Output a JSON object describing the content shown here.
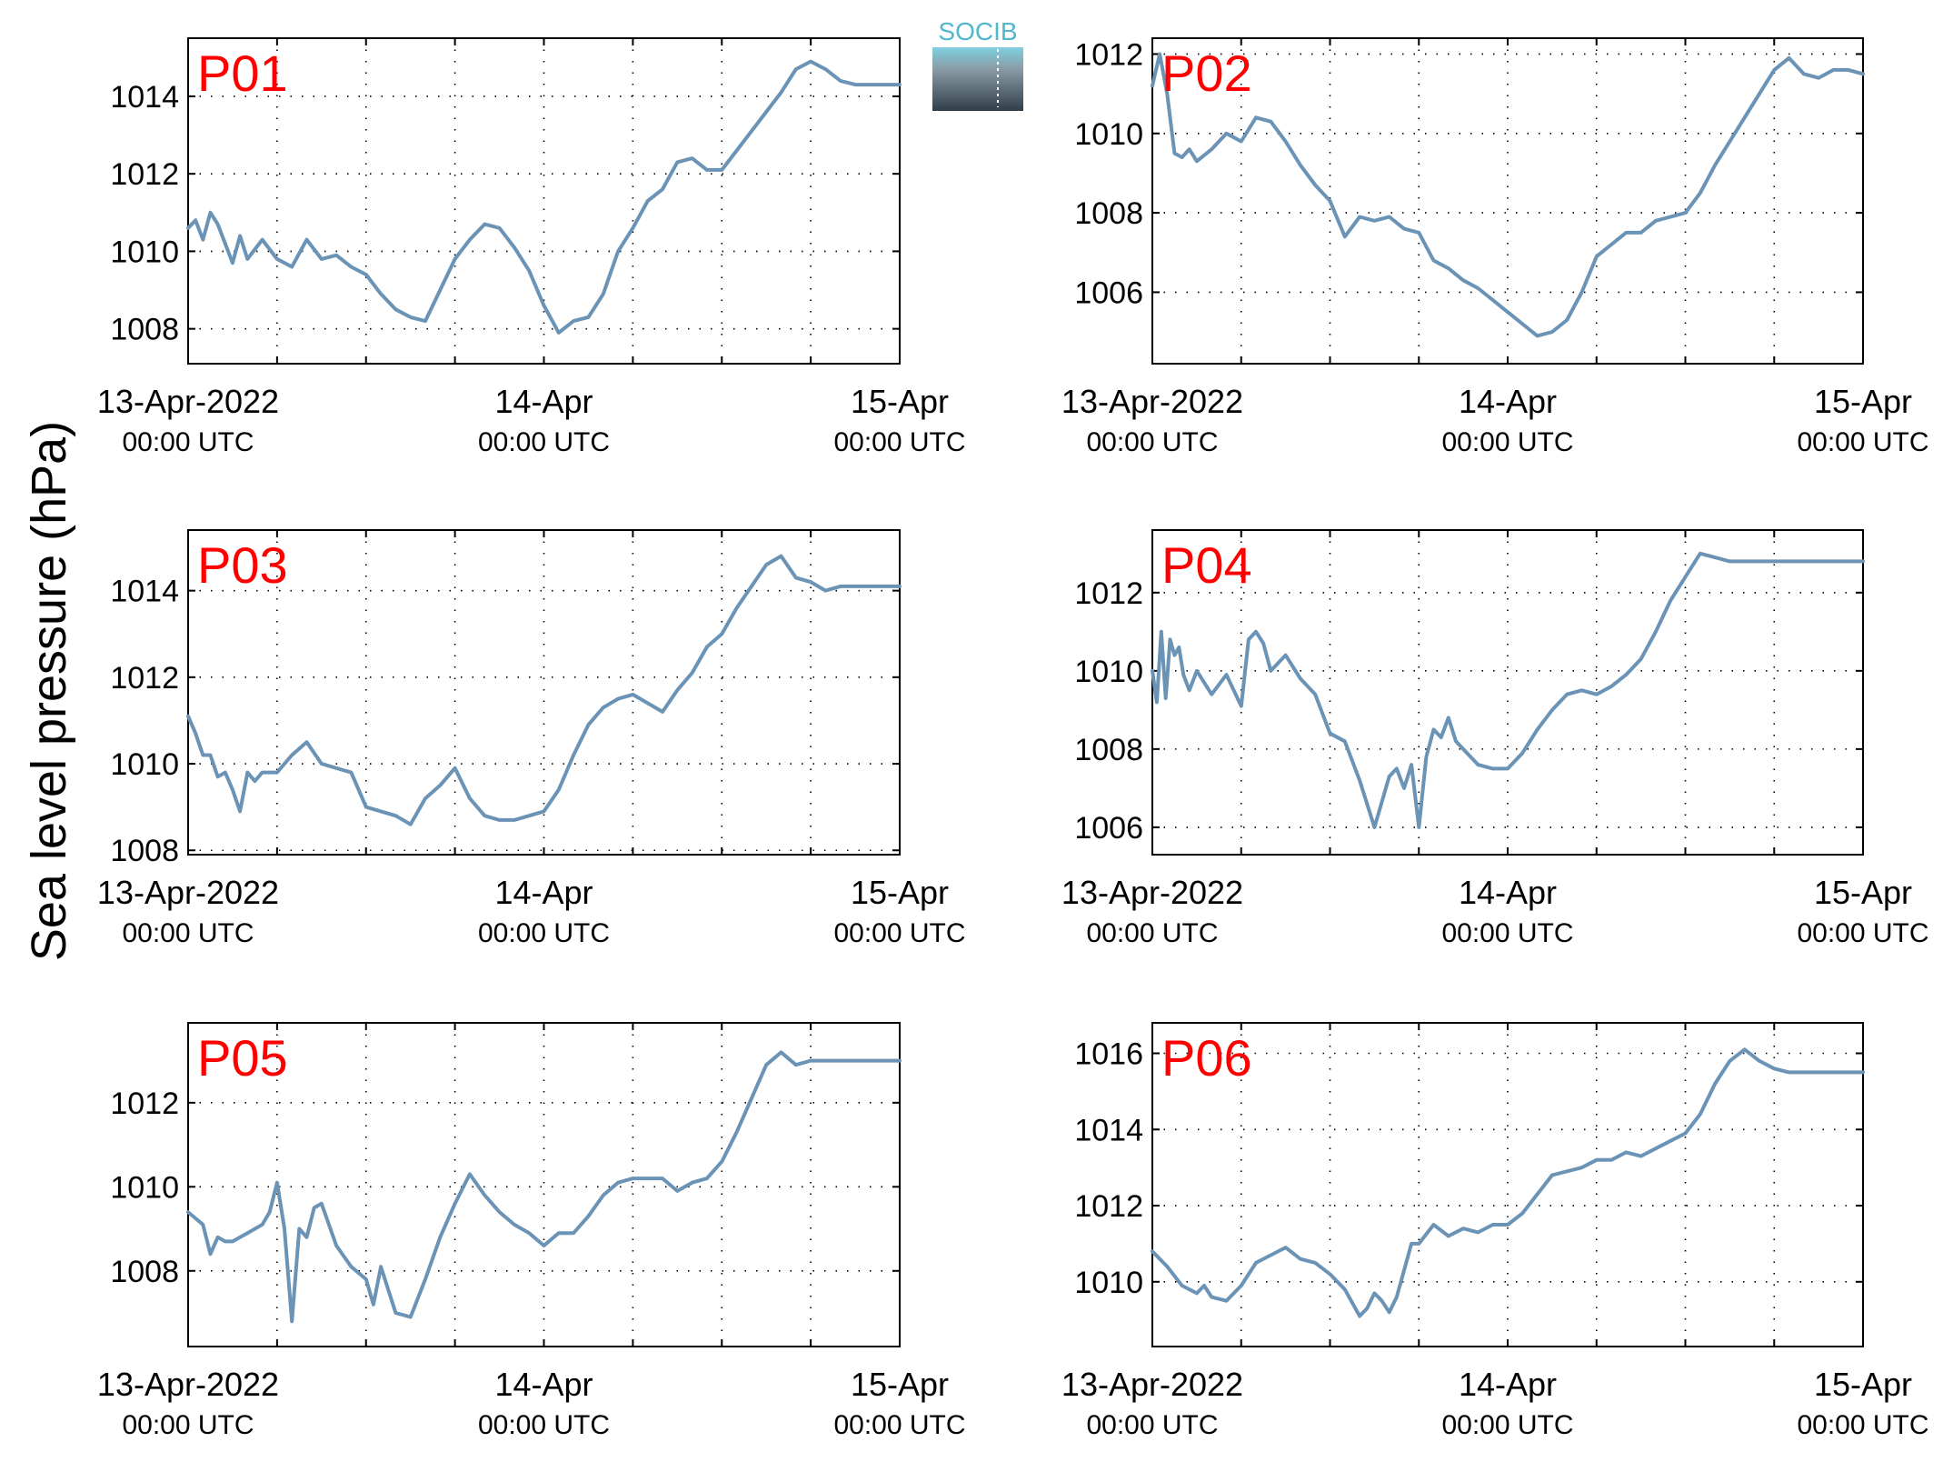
{
  "figure": {
    "ylabel": "Sea level pressure (hPa)",
    "logo_text": "SOCIB",
    "line_color": "#6A93B5",
    "panel_label_color": "#FF0000"
  },
  "chart_data": [
    {
      "type": "line",
      "title": "P01",
      "x_unit": "hours since 13-Apr-2022 00:00 UTC",
      "xlim": [
        0,
        48
      ],
      "x_ticks": [
        0,
        6,
        12,
        18,
        24,
        30,
        36,
        42,
        48
      ],
      "x_ticklabels": [
        {
          "x": 0,
          "line1": "13-Apr-2022",
          "line2": "00:00 UTC"
        },
        {
          "x": 24,
          "line1": "14-Apr",
          "line2": "00:00 UTC"
        },
        {
          "x": 48,
          "line1": "15-Apr",
          "line2": "00:00 UTC"
        }
      ],
      "ylim": [
        1007.1,
        1015.5
      ],
      "y_ticks": [
        1008,
        1010,
        1012,
        1014
      ],
      "grid": true,
      "x": [
        0,
        0.5,
        1,
        1.5,
        2,
        2.5,
        3,
        3.5,
        4,
        5,
        6,
        7,
        8,
        9,
        10,
        11,
        12,
        13,
        14,
        15,
        16,
        17,
        18,
        19,
        20,
        21,
        22,
        23,
        24,
        25,
        26,
        27,
        28,
        29,
        30,
        31,
        32,
        33,
        34,
        35,
        36,
        37,
        38,
        39,
        40,
        41,
        42,
        43,
        44,
        45,
        46,
        47,
        48
      ],
      "y": [
        1010.6,
        1010.8,
        1010.3,
        1011.0,
        1010.7,
        1010.2,
        1009.7,
        1010.4,
        1009.8,
        1010.3,
        1009.8,
        1009.6,
        1010.3,
        1009.8,
        1009.9,
        1009.6,
        1009.4,
        1008.9,
        1008.5,
        1008.3,
        1008.2,
        1009.0,
        1009.8,
        1010.3,
        1010.7,
        1010.6,
        1010.1,
        1009.5,
        1008.6,
        1007.9,
        1008.2,
        1008.3,
        1008.9,
        1010.0,
        1010.6,
        1011.3,
        1011.6,
        1012.3,
        1012.4,
        1012.1,
        1012.1,
        1012.6,
        1013.1,
        1013.6,
        1014.1,
        1014.7,
        1014.9,
        1014.7,
        1014.4,
        1014.3,
        1014.3,
        1014.3,
        1014.3
      ]
    },
    {
      "type": "line",
      "title": "P02",
      "x_unit": "hours since 13-Apr-2022 00:00 UTC",
      "xlim": [
        0,
        48
      ],
      "x_ticks": [
        0,
        6,
        12,
        18,
        24,
        30,
        36,
        42,
        48
      ],
      "x_ticklabels": [
        {
          "x": 0,
          "line1": "13-Apr-2022",
          "line2": "00:00 UTC"
        },
        {
          "x": 24,
          "line1": "14-Apr",
          "line2": "00:00 UTC"
        },
        {
          "x": 48,
          "line1": "15-Apr",
          "line2": "00:00 UTC"
        }
      ],
      "ylim": [
        1004.2,
        1012.4
      ],
      "y_ticks": [
        1006,
        1008,
        1010,
        1012
      ],
      "grid": true,
      "x": [
        0,
        0.5,
        1,
        1.5,
        2,
        2.5,
        3,
        4,
        5,
        6,
        7,
        8,
        9,
        10,
        11,
        12,
        13,
        14,
        15,
        16,
        17,
        18,
        19,
        20,
        21,
        22,
        23,
        24,
        25,
        26,
        27,
        28,
        29,
        30,
        31,
        32,
        33,
        34,
        35,
        36,
        37,
        38,
        39,
        40,
        41,
        42,
        43,
        44,
        45,
        46,
        47,
        48
      ],
      "y": [
        1011.2,
        1012.0,
        1011.0,
        1009.5,
        1009.4,
        1009.6,
        1009.3,
        1009.6,
        1010.0,
        1009.8,
        1010.4,
        1010.3,
        1009.8,
        1009.2,
        1008.7,
        1008.3,
        1007.4,
        1007.9,
        1007.8,
        1007.9,
        1007.6,
        1007.5,
        1006.8,
        1006.6,
        1006.3,
        1006.1,
        1005.8,
        1005.5,
        1005.2,
        1004.9,
        1005.0,
        1005.3,
        1006.0,
        1006.9,
        1007.2,
        1007.5,
        1007.5,
        1007.8,
        1007.9,
        1008.0,
        1008.5,
        1009.2,
        1009.8,
        1010.4,
        1011.0,
        1011.6,
        1011.9,
        1011.5,
        1011.4,
        1011.6,
        1011.6,
        1011.5
      ]
    },
    {
      "type": "line",
      "title": "P03",
      "x_unit": "hours since 13-Apr-2022 00:00 UTC",
      "xlim": [
        0,
        48
      ],
      "x_ticks": [
        0,
        6,
        12,
        18,
        24,
        30,
        36,
        42,
        48
      ],
      "x_ticklabels": [
        {
          "x": 0,
          "line1": "13-Apr-2022",
          "line2": "00:00 UTC"
        },
        {
          "x": 24,
          "line1": "14-Apr",
          "line2": "00:00 UTC"
        },
        {
          "x": 48,
          "line1": "15-Apr",
          "line2": "00:00 UTC"
        }
      ],
      "ylim": [
        1007.9,
        1015.4
      ],
      "y_ticks": [
        1008,
        1010,
        1012,
        1014
      ],
      "grid": true,
      "x": [
        0,
        0.5,
        1,
        1.5,
        2,
        2.5,
        3,
        3.5,
        4,
        4.5,
        5,
        6,
        7,
        8,
        9,
        10,
        11,
        12,
        13,
        14,
        15,
        16,
        17,
        18,
        19,
        20,
        21,
        22,
        23,
        24,
        25,
        26,
        27,
        28,
        29,
        30,
        31,
        32,
        33,
        34,
        35,
        36,
        37,
        38,
        39,
        40,
        41,
        42,
        43,
        44,
        45,
        46,
        47,
        48
      ],
      "y": [
        1011.1,
        1010.7,
        1010.2,
        1010.2,
        1009.7,
        1009.8,
        1009.4,
        1008.9,
        1009.8,
        1009.6,
        1009.8,
        1009.8,
        1010.2,
        1010.5,
        1010.0,
        1009.9,
        1009.8,
        1009.0,
        1008.9,
        1008.8,
        1008.6,
        1009.2,
        1009.5,
        1009.9,
        1009.2,
        1008.8,
        1008.7,
        1008.7,
        1008.8,
        1008.9,
        1009.4,
        1010.2,
        1010.9,
        1011.3,
        1011.5,
        1011.6,
        1011.4,
        1011.2,
        1011.7,
        1012.1,
        1012.7,
        1013.0,
        1013.6,
        1014.1,
        1014.6,
        1014.8,
        1014.3,
        1014.2,
        1014.0,
        1014.1,
        1014.1,
        1014.1,
        1014.1,
        1014.1
      ]
    },
    {
      "type": "line",
      "title": "P04",
      "x_unit": "hours since 13-Apr-2022 00:00 UTC",
      "xlim": [
        0,
        48
      ],
      "x_ticks": [
        0,
        6,
        12,
        18,
        24,
        30,
        36,
        42,
        48
      ],
      "x_ticklabels": [
        {
          "x": 0,
          "line1": "13-Apr-2022",
          "line2": "00:00 UTC"
        },
        {
          "x": 24,
          "line1": "14-Apr",
          "line2": "00:00 UTC"
        },
        {
          "x": 48,
          "line1": "15-Apr",
          "line2": "00:00 UTC"
        }
      ],
      "ylim": [
        1005.3,
        1013.6
      ],
      "y_ticks": [
        1006,
        1008,
        1010,
        1012
      ],
      "grid": true,
      "x": [
        0,
        0.3,
        0.6,
        0.9,
        1.2,
        1.5,
        1.8,
        2.1,
        2.5,
        3,
        4,
        5,
        6,
        6.5,
        7,
        7.5,
        8,
        9,
        10,
        11,
        12,
        13,
        14,
        15,
        16,
        16.5,
        17,
        17.5,
        18,
        18.5,
        19,
        19.5,
        20,
        20.5,
        21,
        22,
        23,
        24,
        25,
        26,
        27,
        28,
        29,
        30,
        31,
        32,
        33,
        34,
        35,
        36,
        37,
        38,
        39,
        40,
        41,
        42,
        43,
        44,
        45,
        46,
        47,
        48
      ],
      "y": [
        1010.0,
        1009.2,
        1011.0,
        1009.3,
        1010.8,
        1010.4,
        1010.6,
        1009.9,
        1009.5,
        1010.0,
        1009.4,
        1009.9,
        1009.1,
        1010.8,
        1011.0,
        1010.7,
        1010.0,
        1010.4,
        1009.8,
        1009.4,
        1008.4,
        1008.2,
        1007.2,
        1006.0,
        1007.3,
        1007.5,
        1007.0,
        1007.6,
        1006.0,
        1007.8,
        1008.5,
        1008.3,
        1008.8,
        1008.2,
        1008.0,
        1007.6,
        1007.5,
        1007.5,
        1007.9,
        1008.5,
        1009.0,
        1009.4,
        1009.5,
        1009.4,
        1009.6,
        1009.9,
        1010.3,
        1011.0,
        1011.8,
        1012.4,
        1013.0,
        1012.9,
        1012.8,
        1012.8,
        1012.8,
        1012.8,
        1012.8,
        1012.8,
        1012.8,
        1012.8,
        1012.8,
        1012.8
      ]
    },
    {
      "type": "line",
      "title": "P05",
      "x_unit": "hours since 13-Apr-2022 00:00 UTC",
      "xlim": [
        0,
        48
      ],
      "x_ticks": [
        0,
        6,
        12,
        18,
        24,
        30,
        36,
        42,
        48
      ],
      "x_ticklabels": [
        {
          "x": 0,
          "line1": "13-Apr-2022",
          "line2": "00:00 UTC"
        },
        {
          "x": 24,
          "line1": "14-Apr",
          "line2": "00:00 UTC"
        },
        {
          "x": 48,
          "line1": "15-Apr",
          "line2": "00:00 UTC"
        }
      ],
      "ylim": [
        1006.2,
        1013.9
      ],
      "y_ticks": [
        1008,
        1010,
        1012
      ],
      "grid": true,
      "x": [
        0,
        1,
        1.5,
        2,
        2.5,
        3,
        4,
        5,
        5.5,
        6,
        6.5,
        7,
        7.5,
        8,
        8.5,
        9,
        10,
        11,
        12,
        12.5,
        13,
        14,
        15,
        16,
        17,
        18,
        19,
        20,
        21,
        22,
        23,
        24,
        25,
        26,
        27,
        28,
        29,
        30,
        31,
        32,
        33,
        34,
        35,
        36,
        37,
        38,
        39,
        40,
        41,
        42,
        43,
        44,
        45,
        46,
        47,
        48
      ],
      "y": [
        1009.4,
        1009.1,
        1008.4,
        1008.8,
        1008.7,
        1008.7,
        1008.9,
        1009.1,
        1009.4,
        1010.1,
        1009.0,
        1006.8,
        1009.0,
        1008.8,
        1009.5,
        1009.6,
        1008.6,
        1008.1,
        1007.8,
        1007.2,
        1008.1,
        1007.0,
        1006.9,
        1007.8,
        1008.8,
        1009.6,
        1010.3,
        1009.8,
        1009.4,
        1009.1,
        1008.9,
        1008.6,
        1008.9,
        1008.9,
        1009.3,
        1009.8,
        1010.1,
        1010.2,
        1010.2,
        1010.2,
        1009.9,
        1010.1,
        1010.2,
        1010.6,
        1011.3,
        1012.1,
        1012.9,
        1013.2,
        1012.9,
        1013.0,
        1013.0,
        1013.0,
        1013.0,
        1013.0,
        1013.0,
        1013.0
      ]
    },
    {
      "type": "line",
      "title": "P06",
      "x_unit": "hours since 13-Apr-2022 00:00 UTC",
      "xlim": [
        0,
        48
      ],
      "x_ticks": [
        0,
        6,
        12,
        18,
        24,
        30,
        36,
        42,
        48
      ],
      "x_ticklabels": [
        {
          "x": 0,
          "line1": "13-Apr-2022",
          "line2": "00:00 UTC"
        },
        {
          "x": 24,
          "line1": "14-Apr",
          "line2": "00:00 UTC"
        },
        {
          "x": 48,
          "line1": "15-Apr",
          "line2": "00:00 UTC"
        }
      ],
      "ylim": [
        1008.3,
        1016.8
      ],
      "y_ticks": [
        1010,
        1012,
        1014,
        1016
      ],
      "grid": true,
      "x": [
        0,
        1,
        2,
        3,
        3.5,
        4,
        5,
        6,
        7,
        8,
        9,
        10,
        11,
        12,
        13,
        14,
        14.5,
        15,
        15.5,
        16,
        16.5,
        17,
        17.5,
        18,
        19,
        20,
        21,
        22,
        23,
        24,
        25,
        26,
        27,
        28,
        29,
        30,
        31,
        32,
        33,
        34,
        35,
        36,
        37,
        38,
        39,
        40,
        41,
        42,
        43,
        44,
        45,
        46,
        47,
        48
      ],
      "y": [
        1010.8,
        1010.4,
        1009.9,
        1009.7,
        1009.9,
        1009.6,
        1009.5,
        1009.9,
        1010.5,
        1010.7,
        1010.9,
        1010.6,
        1010.5,
        1010.2,
        1009.8,
        1009.1,
        1009.3,
        1009.7,
        1009.5,
        1009.2,
        1009.6,
        1010.3,
        1011.0,
        1011.0,
        1011.5,
        1011.2,
        1011.4,
        1011.3,
        1011.5,
        1011.5,
        1011.8,
        1012.3,
        1012.8,
        1012.9,
        1013.0,
        1013.2,
        1013.2,
        1013.4,
        1013.3,
        1013.5,
        1013.7,
        1013.9,
        1014.4,
        1015.2,
        1015.8,
        1016.1,
        1015.8,
        1015.6,
        1015.5,
        1015.5,
        1015.5,
        1015.5,
        1015.5,
        1015.5
      ]
    }
  ]
}
